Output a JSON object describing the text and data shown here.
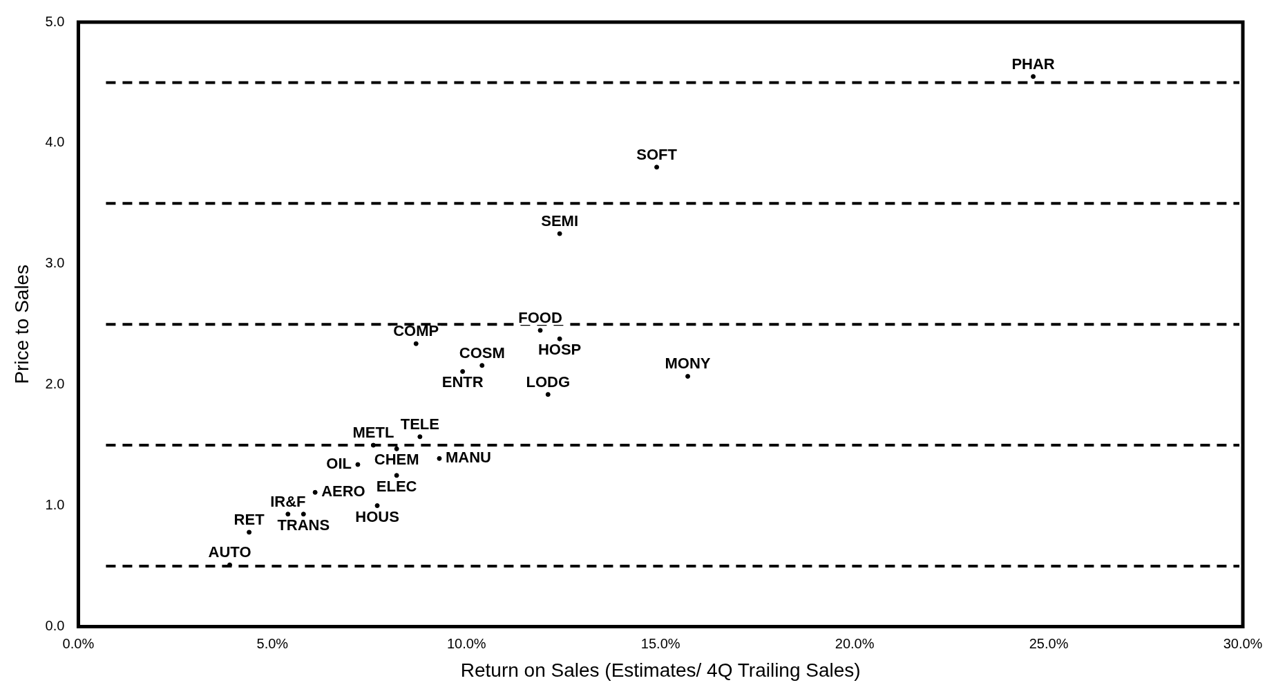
{
  "chart_data": {
    "type": "scatter",
    "xlabel": "Return on Sales (Estimates/ 4Q Trailing Sales)",
    "ylabel": "Price to Sales",
    "xlim": [
      0,
      30
    ],
    "ylim": [
      0,
      5
    ],
    "xticks": [
      {
        "value": 0,
        "label": "0.0%"
      },
      {
        "value": 5,
        "label": "5.0%"
      },
      {
        "value": 10,
        "label": "10.0%"
      },
      {
        "value": 15,
        "label": "15.0%"
      },
      {
        "value": 20,
        "label": "20.0%"
      },
      {
        "value": 25,
        "label": "25.0%"
      },
      {
        "value": 30,
        "label": "30.0%"
      }
    ],
    "yticks": [
      {
        "value": 0,
        "label": "0.0"
      },
      {
        "value": 1,
        "label": "1.0"
      },
      {
        "value": 2,
        "label": "2.0"
      },
      {
        "value": 3,
        "label": "3.0"
      },
      {
        "value": 4,
        "label": "4.0"
      },
      {
        "value": 5,
        "label": "5.0"
      }
    ],
    "grid": false,
    "legend": false,
    "marker": "circle",
    "ref_lines": [
      {
        "axis": "y",
        "value": 0.5,
        "color": "#000000",
        "line_style": "dashed"
      },
      {
        "axis": "y",
        "value": 1.5,
        "color": "#000000",
        "line_style": "dashed"
      },
      {
        "axis": "y",
        "value": 2.5,
        "color": "#000000",
        "line_style": "dashed"
      },
      {
        "axis": "y",
        "value": 3.5,
        "color": "#000000",
        "line_style": "dashed"
      },
      {
        "axis": "y",
        "value": 4.5,
        "color": "#000000",
        "line_style": "dashed"
      }
    ],
    "series": [
      {
        "name": "PHAR",
        "color": "#000000",
        "x": [
          24.6
        ],
        "values": [
          4.55
        ]
      },
      {
        "name": "SOFT",
        "color": "#000000",
        "x": [
          14.9
        ],
        "values": [
          3.8
        ]
      },
      {
        "name": "SEMI",
        "color": "#000000",
        "x": [
          12.4
        ],
        "values": [
          3.25
        ]
      },
      {
        "name": "FOOD",
        "color": "#000000",
        "x": [
          11.9
        ],
        "values": [
          2.45
        ]
      },
      {
        "name": "HOSP",
        "color": "#000000",
        "x": [
          12.4
        ],
        "values": [
          2.38
        ]
      },
      {
        "name": "COMP",
        "color": "#000000",
        "x": [
          8.7
        ],
        "values": [
          2.34
        ]
      },
      {
        "name": "COSM",
        "color": "#000000",
        "x": [
          10.4
        ],
        "values": [
          2.16
        ]
      },
      {
        "name": "ENTR",
        "color": "#000000",
        "x": [
          9.9
        ],
        "values": [
          2.11
        ]
      },
      {
        "name": "MONY",
        "color": "#000000",
        "x": [
          15.7
        ],
        "values": [
          2.07
        ]
      },
      {
        "name": "LODG",
        "color": "#000000",
        "x": [
          12.1
        ],
        "values": [
          1.92
        ]
      },
      {
        "name": "TELE",
        "color": "#000000",
        "x": [
          8.8
        ],
        "values": [
          1.57
        ]
      },
      {
        "name": "METL",
        "color": "#000000",
        "x": [
          7.6
        ],
        "values": [
          1.5
        ]
      },
      {
        "name": "CHEM",
        "color": "#000000",
        "x": [
          8.2
        ],
        "values": [
          1.47
        ]
      },
      {
        "name": "MANU",
        "color": "#000000",
        "x": [
          9.3
        ],
        "values": [
          1.39
        ]
      },
      {
        "name": "OIL",
        "color": "#000000",
        "x": [
          7.2
        ],
        "values": [
          1.34
        ]
      },
      {
        "name": "ELEC",
        "color": "#000000",
        "x": [
          8.2
        ],
        "values": [
          1.25
        ]
      },
      {
        "name": "AERO",
        "color": "#000000",
        "x": [
          6.1
        ],
        "values": [
          1.11
        ]
      },
      {
        "name": "HOUS",
        "color": "#000000",
        "x": [
          7.7
        ],
        "values": [
          1.0
        ]
      },
      {
        "name": "TRANS",
        "color": "#000000",
        "x": [
          5.8
        ],
        "values": [
          0.93
        ]
      },
      {
        "name": "IR&F",
        "color": "#000000",
        "x": [
          5.4
        ],
        "values": [
          0.93
        ]
      },
      {
        "name": "RET",
        "color": "#000000",
        "x": [
          4.4
        ],
        "values": [
          0.78
        ]
      },
      {
        "name": "AUTO",
        "color": "#000000",
        "x": [
          3.9
        ],
        "values": [
          0.51
        ]
      }
    ]
  }
}
